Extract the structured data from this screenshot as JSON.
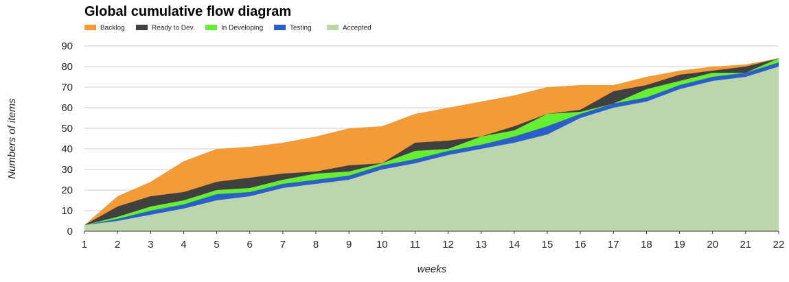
{
  "chart_data": {
    "type": "area",
    "stacked": true,
    "title": "Global cumulative flow diagram",
    "xlabel": "weeks",
    "ylabel": "Numbers of items",
    "ylim": [
      0,
      90
    ],
    "yticks": [
      0,
      10,
      20,
      30,
      40,
      50,
      60,
      70,
      80,
      90
    ],
    "categories": [
      "1",
      "2",
      "3",
      "4",
      "5",
      "6",
      "7",
      "8",
      "9",
      "10",
      "11",
      "12",
      "13",
      "14",
      "15",
      "16",
      "17",
      "18",
      "19",
      "20",
      "21",
      "22"
    ],
    "grid": true,
    "legend_position": "top-left",
    "series": [
      {
        "name": "Backlog",
        "color": "#f29b37",
        "cumulative": [
          3,
          17,
          24,
          34,
          40,
          41,
          43,
          46,
          50,
          51,
          57,
          60,
          63,
          66,
          70,
          71,
          71,
          75,
          78,
          80,
          81,
          84
        ]
      },
      {
        "name": "Ready to Dev.",
        "color": "#404040",
        "cumulative": [
          3,
          12,
          17,
          19,
          24,
          26,
          28,
          29,
          32,
          33,
          43,
          44,
          46,
          51,
          57,
          59,
          68,
          71,
          76,
          78,
          80,
          84
        ]
      },
      {
        "name": "In Developing",
        "color": "#66ee33",
        "cumulative": [
          3,
          7,
          12,
          15,
          20,
          21,
          25,
          28,
          29,
          33,
          39,
          40,
          46,
          49,
          57,
          58,
          62,
          69,
          73,
          77,
          77,
          84
        ]
      },
      {
        "name": "Testing",
        "color": "#2a5fc9",
        "cumulative": [
          3,
          6,
          10,
          13,
          18,
          19,
          23,
          25,
          27,
          32,
          35,
          39,
          42,
          46,
          51,
          57,
          62,
          65,
          71,
          75,
          77,
          82
        ]
      },
      {
        "name": "Accepted",
        "color": "#bcd5aa",
        "cumulative": [
          3,
          5,
          8,
          11,
          15,
          17,
          21,
          23,
          25,
          30,
          33,
          37,
          40,
          43,
          47,
          55,
          60,
          63,
          69,
          73,
          75,
          80
        ]
      }
    ]
  }
}
